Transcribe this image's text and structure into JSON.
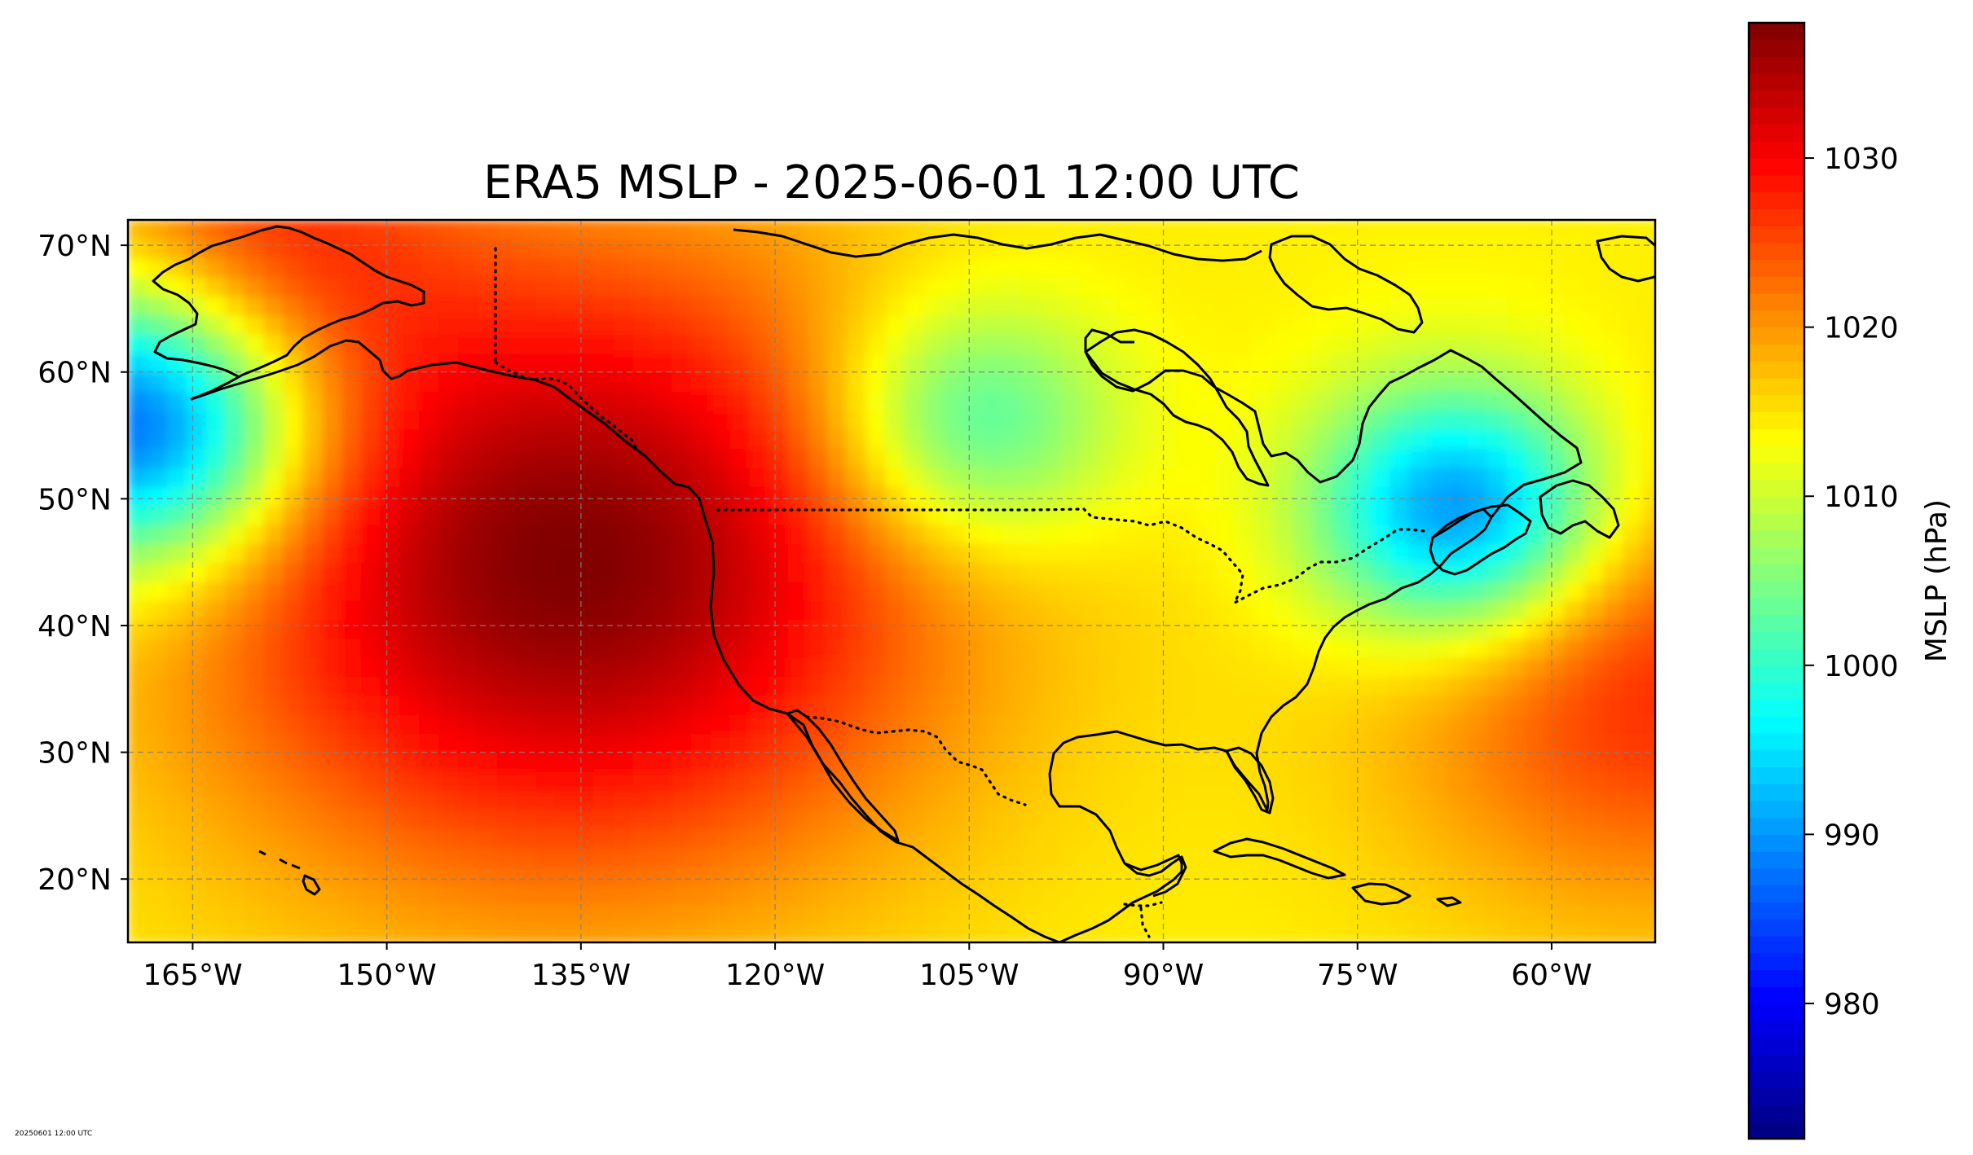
{
  "title": "ERA5 MSLP - 2025-06-01 12:00 UTC",
  "footer": "20250601 12:00 UTC",
  "map": {
    "projection": "PlateCarree",
    "lon_range": [
      -170,
      -52
    ],
    "lat_range": [
      15,
      72
    ],
    "gridlines": "dashed",
    "xticks": [
      {
        "value": -165,
        "label": "165°W"
      },
      {
        "value": -150,
        "label": "150°W"
      },
      {
        "value": -135,
        "label": "135°W"
      },
      {
        "value": -120,
        "label": "120°W"
      },
      {
        "value": -105,
        "label": "105°W"
      },
      {
        "value": -90,
        "label": "90°W"
      },
      {
        "value": -75,
        "label": "75°W"
      },
      {
        "value": -60,
        "label": "60°W"
      }
    ],
    "yticks": [
      {
        "value": 70,
        "label": "70°N"
      },
      {
        "value": 60,
        "label": "60°N"
      },
      {
        "value": 50,
        "label": "50°N"
      },
      {
        "value": 40,
        "label": "40°N"
      },
      {
        "value": 30,
        "label": "30°N"
      },
      {
        "value": 20,
        "label": "20°N"
      }
    ],
    "field": {
      "base_hpa": 1014,
      "features": [
        {
          "name": "North Pacific high",
          "lon": -136,
          "lat": 45,
          "hpa": 1038
        },
        {
          "name": "Aleutian low",
          "lon": -169,
          "lat": 56,
          "hpa": 982
        },
        {
          "name": "Gulf of St. Lawrence low",
          "lon": -67,
          "lat": 49,
          "hpa": 987
        },
        {
          "name": "Bermuda-Azores high",
          "lon": -52,
          "lat": 35,
          "hpa": 1027
        },
        {
          "name": "Prairie trough",
          "lon": -105,
          "lat": 56,
          "hpa": 998
        },
        {
          "name": "Arctic ridge",
          "lon": -160,
          "lat": 71,
          "hpa": 1024
        }
      ]
    }
  },
  "colorbar": {
    "label": "MSLP (hPa)",
    "colormap": "jet",
    "vmin": 972,
    "vmax": 1038,
    "ticks": [
      {
        "value": 980,
        "label": "980"
      },
      {
        "value": 990,
        "label": "990"
      },
      {
        "value": 1000,
        "label": "1000"
      },
      {
        "value": 1010,
        "label": "1010"
      },
      {
        "value": 1020,
        "label": "1020"
      },
      {
        "value": 1030,
        "label": "1030"
      }
    ]
  }
}
